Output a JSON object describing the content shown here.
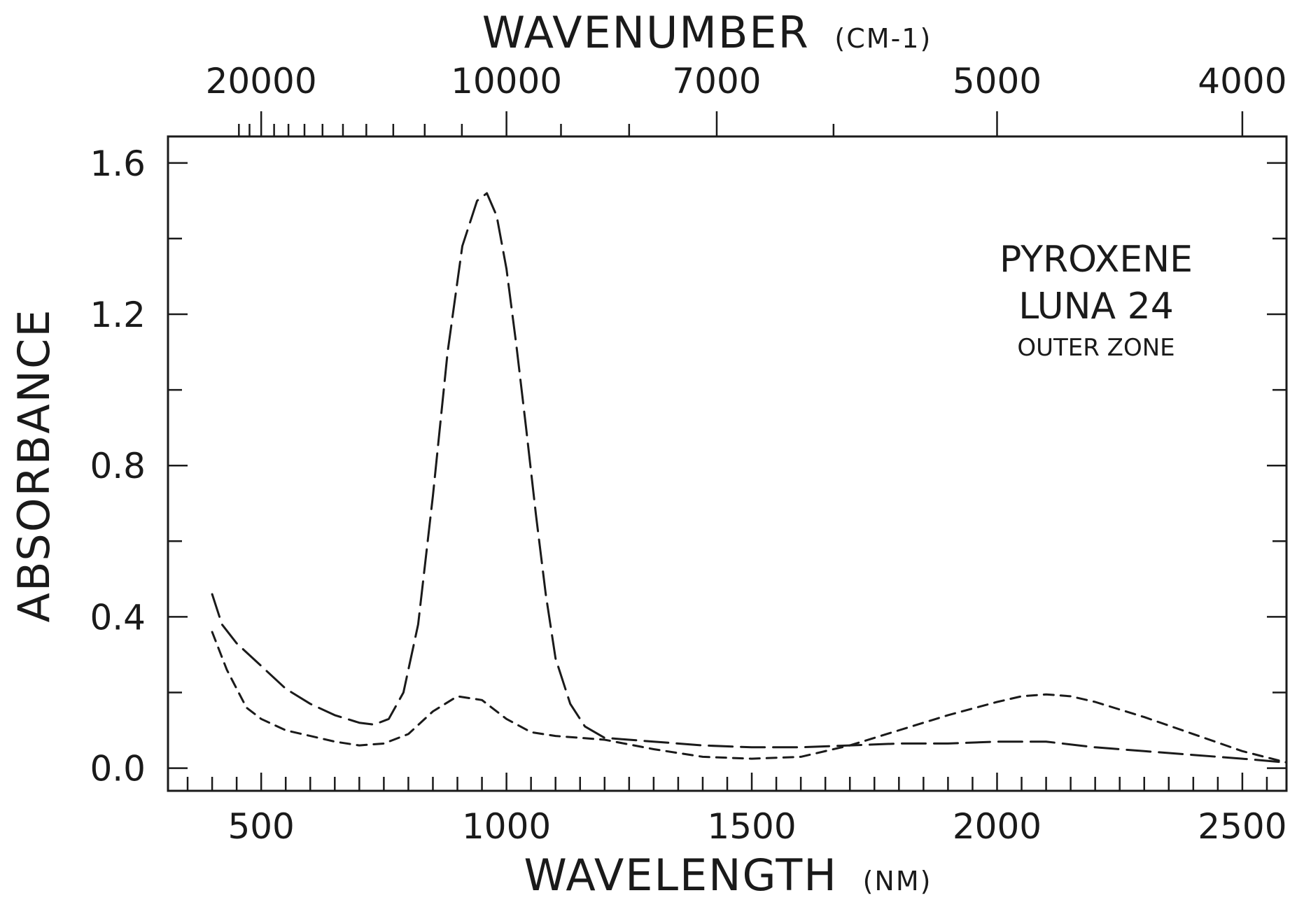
{
  "chart_data": {
    "type": "line",
    "xlabel": "WAVELENGTH",
    "xlabel_unit": "(NM)",
    "ylabel": "ABSORBANCE",
    "top_axis_label": "WAVENUMBER",
    "top_axis_unit": "(CM-1)",
    "xlim": [
      310,
      2590
    ],
    "ylim": [
      -0.06,
      1.67
    ],
    "x_ticks": [
      500,
      1000,
      1500,
      2000,
      2500
    ],
    "x_tick_labels": [
      "500",
      "1000",
      "1500",
      "2000",
      "2500"
    ],
    "y_ticks": [
      0.0,
      0.4,
      0.8,
      1.2,
      1.6
    ],
    "y_tick_labels": [
      "0.0",
      "0.4",
      "0.8",
      "1.2",
      "1.6"
    ],
    "top_ticks": [
      20000,
      10000,
      7000,
      5000,
      4000
    ],
    "top_tick_labels": [
      "20000",
      "10000",
      "7000",
      "5000",
      "4000"
    ],
    "annotation": [
      "PYROXENE",
      "LUNA 24",
      "OUTER ZONE"
    ],
    "legend": "none",
    "grid": false,
    "series": [
      {
        "style": "long-dash",
        "x": [
          400,
          420,
          450,
          500,
          550,
          600,
          650,
          700,
          730,
          760,
          790,
          820,
          850,
          880,
          910,
          940,
          960,
          980,
          1000,
          1020,
          1040,
          1060,
          1080,
          1100,
          1130,
          1160,
          1200,
          1250,
          1300,
          1400,
          1500,
          1600,
          1700,
          1800,
          1900,
          2000,
          2100,
          2200,
          2300,
          2400,
          2500,
          2590
        ],
        "y": [
          0.46,
          0.38,
          0.33,
          0.27,
          0.21,
          0.17,
          0.14,
          0.12,
          0.115,
          0.13,
          0.2,
          0.38,
          0.72,
          1.1,
          1.38,
          1.5,
          1.52,
          1.46,
          1.32,
          1.12,
          0.9,
          0.67,
          0.46,
          0.29,
          0.17,
          0.11,
          0.08,
          0.075,
          0.07,
          0.06,
          0.055,
          0.055,
          0.06,
          0.065,
          0.065,
          0.07,
          0.07,
          0.055,
          0.045,
          0.035,
          0.025,
          0.015
        ]
      },
      {
        "style": "short-dash",
        "x": [
          400,
          430,
          470,
          500,
          550,
          600,
          650,
          700,
          750,
          800,
          850,
          900,
          950,
          1000,
          1050,
          1100,
          1200,
          1300,
          1400,
          1500,
          1600,
          1700,
          1800,
          1900,
          2000,
          2050,
          2100,
          2150,
          2200,
          2300,
          2400,
          2500,
          2590
        ],
        "y": [
          0.36,
          0.26,
          0.16,
          0.13,
          0.1,
          0.085,
          0.07,
          0.06,
          0.065,
          0.09,
          0.15,
          0.19,
          0.18,
          0.13,
          0.095,
          0.085,
          0.075,
          0.05,
          0.03,
          0.025,
          0.03,
          0.06,
          0.1,
          0.14,
          0.175,
          0.19,
          0.195,
          0.19,
          0.175,
          0.135,
          0.09,
          0.045,
          0.015
        ]
      }
    ]
  }
}
